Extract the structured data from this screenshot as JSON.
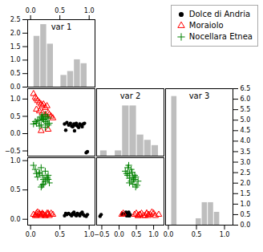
{
  "chart_data": [
    {
      "type": "histogram",
      "title": "var 1",
      "color": "#bebebe",
      "bins": [
        0.05,
        0.165,
        0.28,
        0.395,
        0.51,
        0.625,
        0.74,
        0.855,
        0.97
      ],
      "values": [
        1.8841,
        2.3188,
        1.5942,
        0,
        0.4348,
        0.5797,
        1.0145,
        0.8696
      ],
      "xlim": [
        -0.05,
        1.1
      ],
      "xticks": [
        {
          "value": 0,
          "label": "0.0"
        },
        0.5,
        {
          "value": 1,
          "label": "1.0"
        }
      ],
      "ylim": [
        0,
        2.5
      ],
      "yticks": [
        {
          "value": 0,
          "label": "0.0"
        },
        0.5,
        {
          "value": 1,
          "label": "1.0"
        },
        1.5,
        {
          "value": 2,
          "label": "2.0"
        },
        2.5
      ]
    },
    {
      "type": "scatter",
      "legend": "upper right",
      "tick_labels": "y",
      "xlim": [
        -0.05,
        1.1
      ],
      "ylim": [
        -0.65,
        1.3
      ],
      "yticks": [
        {
          "value": -0.5,
          "label": "−0.5"
        },
        {
          "value": 0,
          "label": "0.0"
        },
        0.5,
        {
          "value": 1,
          "label": "1.0"
        }
      ],
      "series": [
        {
          "name": "Dolce di Andria",
          "color": "black",
          "marker": "circle",
          "x": [
            0.58,
            0.62,
            0.65,
            0.68,
            0.7,
            0.72,
            0.74,
            0.76,
            0.78,
            0.8,
            0.82,
            0.84,
            0.86,
            0.88,
            0.9,
            0.92,
            0.95,
            0.97,
            0.6,
            0.75
          ],
          "values": [
            0.28,
            0.32,
            0.25,
            0.3,
            0.22,
            0.2,
            0.28,
            0.25,
            0.3,
            0.22,
            0.18,
            0.28,
            0.25,
            0.2,
            0.28,
            0.3,
            -0.55,
            -0.52,
            0.1,
            0.08
          ]
        },
        {
          "name": "Moraiolo",
          "color": "red",
          "marker": "triangle",
          "x": [
            0.05,
            0.08,
            0.1,
            0.12,
            0.15,
            0.18,
            0.2,
            0.22,
            0.25,
            0.28,
            0.3,
            0.32,
            0.35,
            0.38,
            0.1,
            0.15,
            0.2,
            0.25,
            0.3,
            0.18
          ],
          "values": [
            1.15,
            1.05,
            1.0,
            0.95,
            0.9,
            0.85,
            0.8,
            0.85,
            0.75,
            0.8,
            0.6,
            0.55,
            0.5,
            0.45,
            0.7,
            0.65,
            0.6,
            0.55,
            0.12,
            0.08
          ]
        },
        {
          "name": "Nocellara Etnea",
          "color": "green",
          "marker": "plus",
          "x": [
            0.05,
            0.08,
            0.1,
            0.12,
            0.15,
            0.18,
            0.2,
            0.22,
            0.25,
            0.15,
            0.18,
            0.22,
            0.25,
            0.28,
            0.3,
            0.32,
            0.2,
            0.25,
            0.28,
            0.3
          ],
          "values": [
            0.28,
            0.35,
            0.3,
            0.4,
            0.38,
            0.25,
            0.45,
            0.42,
            0.18,
            0.22,
            0.48,
            0.4,
            0.35,
            0.3,
            0.25,
            0.3,
            0.52,
            0.55,
            0.48,
            0.45
          ]
        }
      ]
    },
    {
      "type": "histogram",
      "title": "var 2",
      "color": "#bebebe",
      "tick_labels": false,
      "bins": [
        -0.55,
        -0.3375,
        -0.125,
        0.0875,
        0.3,
        0.5125,
        0.725,
        0.9375,
        1.15
      ],
      "values": [
        0.1569,
        0,
        0.1569,
        1.4902,
        1.4902,
        0.6275,
        0.4706,
        0.3137
      ],
      "xlim": [
        -0.65,
        1.3
      ],
      "ylim": [
        0,
        2
      ]
    },
    {
      "type": "scatter",
      "xlim": [
        -0.05,
        1.1
      ],
      "xticks": [
        {
          "value": 0,
          "label": "0.0"
        },
        0.5,
        {
          "value": 1,
          "label": "1.0"
        }
      ],
      "ylim": [
        -0.1,
        1.05
      ],
      "yticks": [
        {
          "value": 0,
          "label": "0.0"
        },
        0.5,
        {
          "value": 1,
          "label": "1.0"
        }
      ],
      "series": [
        {
          "name": "Dolce di Andria",
          "color": "black",
          "marker": "circle",
          "x": [
            0.58,
            0.62,
            0.65,
            0.68,
            0.7,
            0.72,
            0.74,
            0.76,
            0.78,
            0.8,
            0.82,
            0.84,
            0.86,
            0.88,
            0.9,
            0.92,
            0.95,
            0.97,
            0.6,
            0.75
          ],
          "values": [
            0.06,
            0.08,
            0.1,
            0.08,
            0.06,
            0.1,
            0.12,
            0.08,
            0.06,
            0.1,
            0.08,
            0.06,
            0.1,
            0.12,
            0.08,
            0.06,
            0.05,
            0.08,
            0.1,
            0.08
          ]
        },
        {
          "name": "Moraiolo",
          "color": "red",
          "marker": "triangle",
          "x": [
            0.05,
            0.08,
            0.1,
            0.12,
            0.15,
            0.18,
            0.2,
            0.22,
            0.25,
            0.28,
            0.3,
            0.32,
            0.35,
            0.38,
            0.1,
            0.15,
            0.2,
            0.25,
            0.3,
            0.18
          ],
          "values": [
            0.08,
            0.06,
            0.1,
            0.12,
            0.08,
            0.06,
            0.1,
            0.08,
            0.06,
            0.1,
            0.08,
            0.06,
            0.1,
            0.08,
            0.06,
            0.1,
            0.08,
            0.06,
            0.1,
            0.08
          ]
        },
        {
          "name": "Nocellara Etnea",
          "color": "green",
          "marker": "plus",
          "x": [
            0.05,
            0.08,
            0.1,
            0.12,
            0.15,
            0.18,
            0.2,
            0.22,
            0.25,
            0.15,
            0.18,
            0.22,
            0.25,
            0.28,
            0.3,
            0.32,
            0.2,
            0.25,
            0.28,
            0.3
          ],
          "values": [
            0.92,
            0.85,
            0.78,
            0.72,
            0.8,
            0.88,
            0.75,
            0.68,
            0.82,
            0.78,
            0.55,
            0.6,
            0.65,
            0.7,
            0.75,
            0.62,
            0.58,
            0.65,
            0.72,
            0.68
          ]
        }
      ]
    },
    {
      "type": "scatter",
      "tick_labels": "x",
      "xlim": [
        -0.65,
        1.3
      ],
      "xticks": [
        {
          "value": -0.5,
          "label": "−0.5"
        },
        {
          "value": 0,
          "label": "0.0"
        },
        0.5,
        {
          "value": 1,
          "label": "1.0"
        }
      ],
      "ylim": [
        -0.1,
        1.05
      ],
      "series": [
        {
          "name": "Dolce di Andria",
          "color": "black",
          "marker": "circle",
          "x": [
            0.28,
            0.32,
            0.25,
            0.3,
            0.22,
            0.2,
            0.28,
            0.25,
            0.3,
            0.22,
            0.18,
            0.28,
            0.25,
            0.2,
            0.28,
            0.3,
            -0.55,
            -0.52,
            0.1,
            0.08
          ],
          "values": [
            0.06,
            0.08,
            0.1,
            0.08,
            0.06,
            0.1,
            0.12,
            0.08,
            0.06,
            0.1,
            0.08,
            0.06,
            0.1,
            0.12,
            0.08,
            0.06,
            0.05,
            0.08,
            0.1,
            0.08
          ]
        },
        {
          "name": "Moraiolo",
          "color": "red",
          "marker": "triangle",
          "x": [
            1.15,
            1.05,
            1.0,
            0.95,
            0.9,
            0.85,
            0.8,
            0.85,
            0.75,
            0.8,
            0.6,
            0.55,
            0.5,
            0.45,
            0.7,
            0.65,
            0.6,
            0.55,
            0.12,
            0.08
          ],
          "values": [
            0.08,
            0.06,
            0.1,
            0.12,
            0.08,
            0.06,
            0.1,
            0.08,
            0.06,
            0.1,
            0.08,
            0.06,
            0.1,
            0.08,
            0.06,
            0.1,
            0.08,
            0.06,
            0.1,
            0.08
          ]
        },
        {
          "name": "Nocellara Etnea",
          "color": "green",
          "marker": "plus",
          "x": [
            0.28,
            0.35,
            0.3,
            0.4,
            0.38,
            0.25,
            0.45,
            0.42,
            0.18,
            0.22,
            0.48,
            0.4,
            0.35,
            0.3,
            0.25,
            0.3,
            0.52,
            0.55,
            0.48,
            0.45
          ],
          "values": [
            0.92,
            0.85,
            0.78,
            0.72,
            0.8,
            0.88,
            0.75,
            0.68,
            0.82,
            0.78,
            0.55,
            0.6,
            0.65,
            0.7,
            0.75,
            0.62,
            0.58,
            0.65,
            0.72,
            0.68
          ]
        }
      ]
    },
    {
      "type": "histogram",
      "title": "var 3",
      "color": "#bebebe",
      "bins": [
        0.05,
        0.15875,
        0.2675,
        0.37625,
        0.485,
        0.59375,
        0.7025,
        0.81125,
        0.92
      ],
      "values": [
        6.1303,
        0,
        0,
        0,
        0.3065,
        1.0728,
        1.0728,
        0.613
      ],
      "xlim": [
        -0.05,
        1.15
      ],
      "xticks": [
        {
          "value": 0,
          "label": "0.0"
        },
        0.5,
        {
          "value": 1,
          "label": "1.0"
        }
      ],
      "ylim": [
        0,
        6.5
      ],
      "yticks": [
        {
          "value": 0,
          "label": "0.0"
        },
        0.5,
        {
          "value": 1,
          "label": "1.0"
        },
        1.5,
        {
          "value": 2,
          "label": "2.0"
        },
        2.5,
        {
          "value": 3,
          "label": "3.0"
        },
        3.5,
        {
          "value": 4,
          "label": "4.0"
        },
        4.5,
        {
          "value": 5,
          "label": "5.0"
        },
        5.5,
        {
          "value": 6,
          "label": "6.0"
        },
        6.5
      ]
    }
  ]
}
